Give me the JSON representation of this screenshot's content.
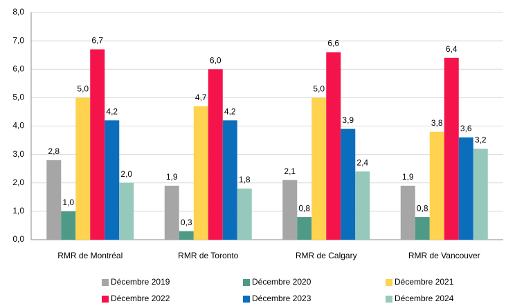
{
  "chart_data": {
    "type": "bar",
    "categories": [
      "RMR de Montréal",
      "RMR de Toronto",
      "RMR de Calgary",
      "RMR de Vancouver"
    ],
    "series": [
      {
        "name": "Décembre 2019",
        "color": "#a6a6a6",
        "values": [
          2.8,
          1.9,
          2.1,
          1.9
        ],
        "value_labels": [
          "2,8",
          "1,9",
          "2,1",
          "1,9"
        ]
      },
      {
        "name": "Décembre 2020",
        "color": "#4e9a86",
        "values": [
          1.0,
          0.3,
          0.8,
          0.8
        ],
        "value_labels": [
          "1,0",
          "0,3",
          "0,8",
          "0,8"
        ]
      },
      {
        "name": "Décembre 2021",
        "color": "#ffd24f",
        "values": [
          5.0,
          4.7,
          5.0,
          3.8
        ],
        "value_labels": [
          "5,0",
          "4,7",
          "5,0",
          "3,8"
        ]
      },
      {
        "name": "Décembre 2022",
        "color": "#f5134b",
        "values": [
          6.7,
          6.0,
          6.6,
          6.4
        ],
        "value_labels": [
          "6,7",
          "6,0",
          "6,6",
          "6,4"
        ]
      },
      {
        "name": "Décembre 2023",
        "color": "#0a6ebd",
        "values": [
          4.2,
          4.2,
          3.9,
          3.6
        ],
        "value_labels": [
          "4,2",
          "4,2",
          "3,9",
          "3,6"
        ]
      },
      {
        "name": "Décembre 2024",
        "color": "#96c8bc",
        "values": [
          2.0,
          1.8,
          2.4,
          3.2
        ],
        "value_labels": [
          "2,0",
          "1,8",
          "2,4",
          "3,2"
        ]
      }
    ],
    "ylim": [
      0,
      8
    ],
    "yticks": [
      {
        "value": 0,
        "label": "0,0"
      },
      {
        "value": 1,
        "label": "1,0"
      },
      {
        "value": 2,
        "label": "2,0"
      },
      {
        "value": 3,
        "label": "3,0"
      },
      {
        "value": 4,
        "label": "4,0"
      },
      {
        "value": 5,
        "label": "5,0"
      },
      {
        "value": 6,
        "label": "6,0"
      },
      {
        "value": 7,
        "label": "7,0"
      },
      {
        "value": 8,
        "label": "8,0"
      }
    ],
    "grid": true,
    "legend": "bottom"
  }
}
